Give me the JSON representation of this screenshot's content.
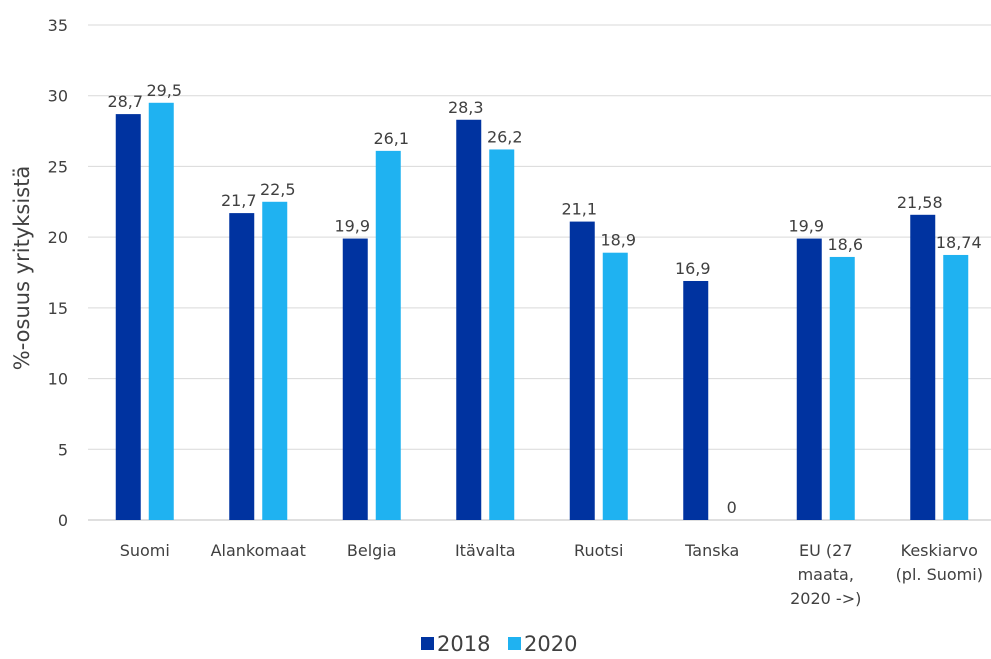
{
  "chart_data": {
    "type": "bar",
    "title": "",
    "xlabel": "",
    "ylabel": "%-osuus yrityksistä",
    "ylim": [
      0,
      35
    ],
    "yticks": [
      0,
      5,
      10,
      15,
      20,
      25,
      30,
      35
    ],
    "grid": true,
    "legend_position": "bottom",
    "categories": [
      [
        "Suomi"
      ],
      [
        "Alankomaat"
      ],
      [
        "Belgia"
      ],
      [
        "Itävalta"
      ],
      [
        "Ruotsi"
      ],
      [
        "Tanska"
      ],
      [
        "EU (27",
        "maata,",
        "2020 ->)"
      ],
      [
        "Keskiarvo",
        "(pl. Suomi)"
      ]
    ],
    "series": [
      {
        "name": "2018",
        "color": "#0033a0",
        "values": [
          28.7,
          21.7,
          19.9,
          28.3,
          21.1,
          16.9,
          19.9,
          21.58
        ],
        "labels": [
          "28,7",
          "21,7",
          "19,9",
          "28,3",
          "21,1",
          "16,9",
          "19,9",
          "21,58"
        ]
      },
      {
        "name": "2020",
        "color": "#1fb2f1",
        "values": [
          29.5,
          22.5,
          26.1,
          26.2,
          18.9,
          0,
          18.6,
          18.74
        ],
        "labels": [
          "29,5",
          "22,5",
          "26,1",
          "26,2",
          "18,9",
          "0",
          "18,6",
          "18,74"
        ]
      }
    ]
  }
}
